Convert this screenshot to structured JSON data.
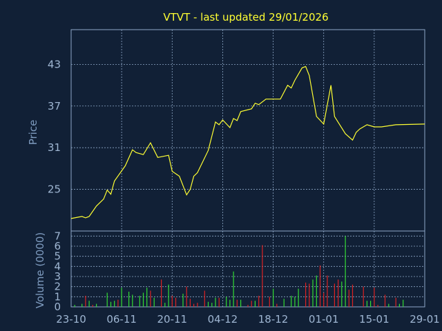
{
  "chart_data": {
    "type": "line",
    "title": "VTVT - last updated 29/01/2026",
    "colors": {
      "background": "#112036",
      "frame": "#8fa9c9",
      "grid": "#8fa9c9",
      "price_line": "#ffff33",
      "volume_up": "#33dd33",
      "volume_down": "#dd2222",
      "title": "#ffff33",
      "tick_label": "#9fb6d2",
      "axis_label": "#7f9cc0"
    },
    "x_tick_labels": [
      "23-10",
      "06-11",
      "20-11",
      "04-12",
      "18-12",
      "01-01",
      "15-01",
      "29-01"
    ],
    "x_tick_days": [
      0,
      14,
      28,
      42,
      56,
      70,
      84,
      98
    ],
    "price_panel": {
      "ylabel": "Price",
      "ylim": [
        19,
        48
      ],
      "yticks": [
        19,
        25,
        31,
        37,
        43
      ],
      "ytick_labels": [
        "",
        "25",
        "31",
        "37",
        "43"
      ],
      "grid": true,
      "series": [
        {
          "x": [
            0,
            2,
            3,
            4,
            6,
            7,
            8,
            10,
            12,
            13,
            14,
            16,
            18,
            19,
            20,
            22,
            24,
            25,
            26,
            27,
            28,
            29,
            30,
            32,
            34,
            35,
            36,
            37,
            38,
            40,
            41,
            42,
            44,
            46,
            47,
            48,
            50,
            51,
            52,
            53,
            54,
            56,
            57,
            58,
            59,
            60,
            62,
            63,
            64,
            65,
            66,
            68,
            69,
            70,
            71,
            72,
            74,
            75,
            76,
            77,
            78,
            80,
            81,
            82,
            83,
            84,
            86,
            87,
            88,
            89,
            90,
            91,
            92,
            93,
            95,
            96,
            97,
            98
          ],
          "y": [
            20.8,
            21.1,
            21.0,
            21.1,
            22.5,
            23.1,
            24.8,
            26.2,
            27.5,
            29.0,
            30.7,
            30.1,
            30.2,
            30.1,
            31.7,
            29.7,
            29.5,
            27.7,
            27.3,
            26.9,
            25.5,
            23.7,
            25.0,
            26.3,
            28.5,
            30.1,
            32.0,
            33.9,
            34.6,
            34.5,
            34.1,
            35.2,
            35.0,
            36.5,
            36.6,
            37.0,
            37.3,
            37.4,
            38.0,
            38.0,
            38.0,
            38.0,
            40.0,
            39.5,
            40.5,
            42.5,
            42.8,
            41.5,
            36.6,
            35.5,
            34.5,
            40.0,
            37.5,
            35.3,
            34.5,
            33.5,
            32.3,
            33.2,
            33.8,
            34.2,
            34.0,
            34.0,
            34.2,
            34.5,
            34.3,
            34.1,
            34.2,
            34.1,
            34.3,
            34.0,
            34.1,
            34.2,
            34.0,
            34.2,
            34.3,
            34.3,
            34.2,
            34.4
          ],
          "line_y": [
            20.8,
            21.0,
            21.1,
            20.9,
            21.1,
            22.6,
            23.6,
            24.9,
            24.3,
            26.2,
            28.4,
            30.7,
            30.3,
            30.0,
            31.7,
            29.6,
            29.9,
            27.6,
            26.9,
            24.2,
            25.0,
            26.9,
            27.4,
            30.6,
            34.7,
            34.3,
            35.0,
            33.9,
            35.2,
            34.9,
            36.2,
            36.6,
            37.4,
            37.2,
            38.0,
            38.0,
            38.0,
            40.0,
            39.6,
            40.7,
            42.5,
            42.7,
            41.4,
            35.5,
            34.4,
            40.0,
            35.5,
            33.0,
            32.1,
            33.2,
            33.7,
            34.3,
            34.0,
            34.0,
            34.3,
            34.4
          ],
          "line_x": [
            0,
            2,
            3,
            4,
            5,
            7,
            9,
            10,
            11,
            12,
            15,
            17,
            18,
            20,
            22,
            24,
            27,
            28,
            30,
            32,
            33,
            34,
            35,
            38,
            40,
            41,
            42,
            44,
            45,
            46,
            47,
            50,
            51,
            52,
            54,
            56,
            58,
            60,
            61,
            62,
            64,
            65,
            66,
            68,
            70,
            72,
            73,
            76,
            78,
            79,
            80,
            82,
            84,
            86,
            90,
            98
          ]
        }
      ]
    },
    "volume_panel": {
      "ylabel": "Volume (0000)",
      "ylim": [
        0,
        7.5
      ],
      "yticks": [
        0,
        1,
        2,
        3,
        4,
        5,
        6,
        7
      ],
      "ytick_labels": [
        "0",
        "1",
        "2",
        "3",
        "4",
        "5",
        "6",
        "7"
      ],
      "grid": true,
      "bars": [
        {
          "x": 1,
          "v": 0.2,
          "dir": "up"
        },
        {
          "x": 3,
          "v": 0.3,
          "dir": "up"
        },
        {
          "x": 4,
          "v": 1.1,
          "dir": "down"
        },
        {
          "x": 5,
          "v": 0.6,
          "dir": "up"
        },
        {
          "x": 6,
          "v": 0.2,
          "dir": "down"
        },
        {
          "x": 7,
          "v": 0.3,
          "dir": "up"
        },
        {
          "x": 10,
          "v": 1.4,
          "dir": "up"
        },
        {
          "x": 11,
          "v": 0.5,
          "dir": "up"
        },
        {
          "x": 12,
          "v": 0.6,
          "dir": "up"
        },
        {
          "x": 13,
          "v": 0.7,
          "dir": "down"
        },
        {
          "x": 14,
          "v": 1.9,
          "dir": "up"
        },
        {
          "x": 16,
          "v": 1.5,
          "dir": "up"
        },
        {
          "x": 17,
          "v": 1.2,
          "dir": "up"
        },
        {
          "x": 19,
          "v": 1.1,
          "dir": "up"
        },
        {
          "x": 20,
          "v": 1.4,
          "dir": "up"
        },
        {
          "x": 21,
          "v": 1.9,
          "dir": "up"
        },
        {
          "x": 22,
          "v": 1.6,
          "dir": "down"
        },
        {
          "x": 23,
          "v": 0.9,
          "dir": "up"
        },
        {
          "x": 25,
          "v": 2.7,
          "dir": "down"
        },
        {
          "x": 26,
          "v": 0.4,
          "dir": "up"
        },
        {
          "x": 27,
          "v": 2.2,
          "dir": "up"
        },
        {
          "x": 28,
          "v": 1.1,
          "dir": "down"
        },
        {
          "x": 29,
          "v": 0.9,
          "dir": "down"
        },
        {
          "x": 31,
          "v": 1.3,
          "dir": "up"
        },
        {
          "x": 32,
          "v": 2.0,
          "dir": "down"
        },
        {
          "x": 33,
          "v": 0.8,
          "dir": "down"
        },
        {
          "x": 34,
          "v": 0.3,
          "dir": "down"
        },
        {
          "x": 35,
          "v": 0.4,
          "dir": "down"
        },
        {
          "x": 37,
          "v": 1.6,
          "dir": "down"
        },
        {
          "x": 38,
          "v": 0.5,
          "dir": "up"
        },
        {
          "x": 39,
          "v": 0.4,
          "dir": "up"
        },
        {
          "x": 40,
          "v": 0.9,
          "dir": "up"
        },
        {
          "x": 41,
          "v": 0.9,
          "dir": "down"
        },
        {
          "x": 43,
          "v": 1.0,
          "dir": "up"
        },
        {
          "x": 44,
          "v": 0.7,
          "dir": "up"
        },
        {
          "x": 45,
          "v": 3.5,
          "dir": "up"
        },
        {
          "x": 46,
          "v": 0.7,
          "dir": "down"
        },
        {
          "x": 47,
          "v": 0.7,
          "dir": "up"
        },
        {
          "x": 49,
          "v": 0.2,
          "dir": "down"
        },
        {
          "x": 50,
          "v": 0.6,
          "dir": "down"
        },
        {
          "x": 51,
          "v": 0.6,
          "dir": "up"
        },
        {
          "x": 52,
          "v": 1.1,
          "dir": "down"
        },
        {
          "x": 53,
          "v": 6.1,
          "dir": "down"
        },
        {
          "x": 55,
          "v": 1.0,
          "dir": "down"
        },
        {
          "x": 56,
          "v": 1.8,
          "dir": "up"
        },
        {
          "x": 57,
          "v": 0.3,
          "dir": "down"
        },
        {
          "x": 59,
          "v": 0.8,
          "dir": "up"
        },
        {
          "x": 61,
          "v": 1.1,
          "dir": "up"
        },
        {
          "x": 62,
          "v": 1.0,
          "dir": "up"
        },
        {
          "x": 63,
          "v": 1.8,
          "dir": "up"
        },
        {
          "x": 65,
          "v": 2.4,
          "dir": "down"
        },
        {
          "x": 66,
          "v": 2.3,
          "dir": "down"
        },
        {
          "x": 67,
          "v": 2.7,
          "dir": "up"
        },
        {
          "x": 68,
          "v": 3.1,
          "dir": "up"
        },
        {
          "x": 69,
          "v": 4.1,
          "dir": "down"
        },
        {
          "x": 70,
          "v": 1.4,
          "dir": "down"
        },
        {
          "x": 71,
          "v": 3.1,
          "dir": "down"
        },
        {
          "x": 73,
          "v": 2.3,
          "dir": "down"
        },
        {
          "x": 74,
          "v": 2.7,
          "dir": "down"
        },
        {
          "x": 75,
          "v": 2.5,
          "dir": "up"
        },
        {
          "x": 76,
          "v": 7.0,
          "dir": "up"
        },
        {
          "x": 77,
          "v": 1.7,
          "dir": "down"
        },
        {
          "x": 78,
          "v": 2.2,
          "dir": "down"
        },
        {
          "x": 81,
          "v": 2.0,
          "dir": "down"
        },
        {
          "x": 82,
          "v": 0.6,
          "dir": "up"
        },
        {
          "x": 83,
          "v": 0.6,
          "dir": "up"
        },
        {
          "x": 84,
          "v": 1.9,
          "dir": "down"
        },
        {
          "x": 85,
          "v": 0.2,
          "dir": "down"
        },
        {
          "x": 87,
          "v": 1.2,
          "dir": "down"
        },
        {
          "x": 88,
          "v": 0.3,
          "dir": "up"
        },
        {
          "x": 90,
          "v": 0.9,
          "dir": "down"
        },
        {
          "x": 91,
          "v": 0.3,
          "dir": "up"
        },
        {
          "x": 92,
          "v": 0.7,
          "dir": "up"
        }
      ]
    }
  }
}
